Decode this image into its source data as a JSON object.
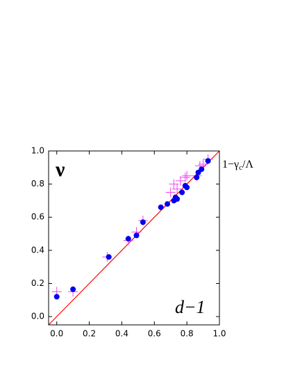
{
  "chart_data": {
    "type": "scatter",
    "annotations": {
      "top_left": "ν",
      "bottom_right": "d−1",
      "right": [
        "1−γ",
        "c",
        "/Λ"
      ]
    },
    "xlim": [
      -0.05,
      1.0
    ],
    "ylim": [
      -0.05,
      1.0
    ],
    "xticks": [
      {
        "value": 0,
        "label": "0.0"
      },
      {
        "value": 0.2,
        "label": "0.2"
      },
      {
        "value": 0.4,
        "label": "0.4"
      },
      {
        "value": 0.6,
        "label": "0.6"
      },
      {
        "value": 0.8,
        "label": "0.8"
      },
      {
        "value": 1,
        "label": "1.0"
      }
    ],
    "yticks": [
      {
        "value": 0,
        "label": "0.0"
      },
      {
        "value": 0.2,
        "label": "0.2"
      },
      {
        "value": 0.4,
        "label": "0.4"
      },
      {
        "value": 0.6,
        "label": "0.6"
      },
      {
        "value": 0.8,
        "label": "0.8"
      },
      {
        "value": 1,
        "label": "1.0"
      }
    ],
    "diagonal": true,
    "diagonal_color": "#ff0000",
    "series": [
      {
        "color": "#ee44ee",
        "marker": "cross",
        "x": [
          0,
          0.1,
          0.31,
          0.44,
          0.49,
          0.53,
          0.7,
          0.72,
          0.74,
          0.76,
          0.79,
          0.8,
          0.86,
          0.88,
          0.9,
          0.93
        ],
        "values": [
          0.15,
          0.15,
          0.36,
          0.46,
          0.51,
          0.58,
          0.75,
          0.8,
          0.77,
          0.82,
          0.84,
          0.85,
          0.85,
          0.91,
          0.92,
          0.95
        ]
      },
      {
        "color": "#0000ee",
        "marker": "circle",
        "x": [
          0,
          0.1,
          0.32,
          0.44,
          0.49,
          0.53,
          0.64,
          0.68,
          0.72,
          0.73,
          0.74,
          0.77,
          0.79,
          0.8,
          0.86,
          0.87,
          0.89,
          0.93
        ],
        "values": [
          0.12,
          0.165,
          0.36,
          0.47,
          0.49,
          0.57,
          0.66,
          0.68,
          0.7,
          0.72,
          0.71,
          0.75,
          0.79,
          0.78,
          0.84,
          0.87,
          0.89,
          0.94
        ]
      }
    ]
  }
}
